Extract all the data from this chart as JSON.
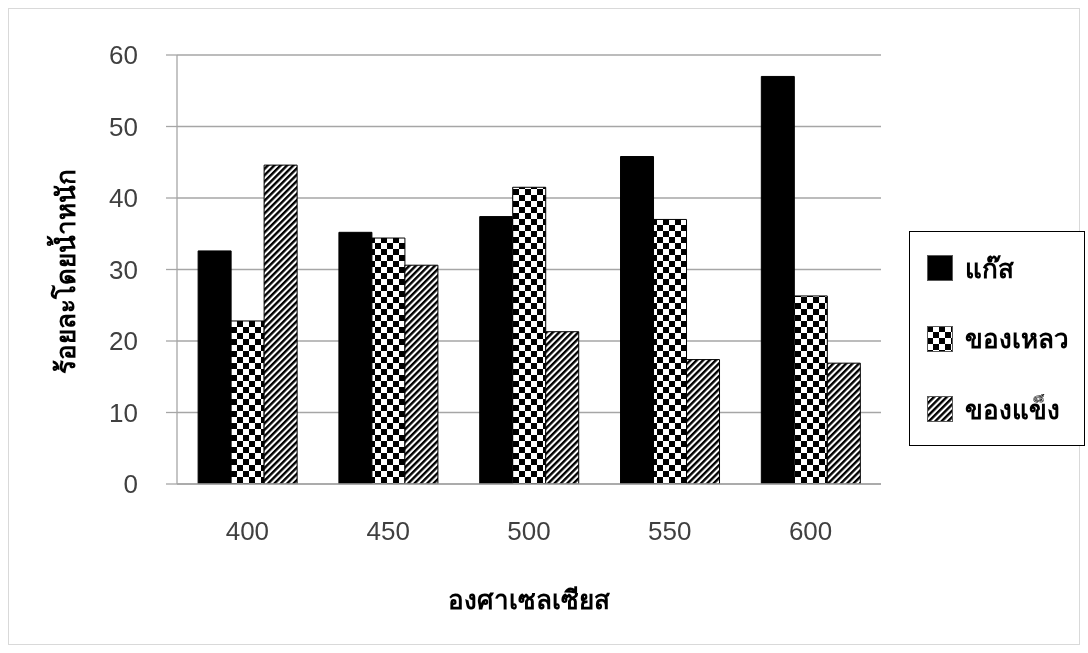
{
  "chart_data": {
    "type": "bar",
    "xlabel": "องศาเซลเซียส",
    "ylabel": "ร้อยละโดยน้ำหนัก",
    "categories": [
      "400",
      "450",
      "500",
      "550",
      "600"
    ],
    "series": [
      {
        "name": "แก๊ส",
        "color": "#000000",
        "values": [
          32.6,
          35.2,
          37.4,
          45.8,
          57.0
        ]
      },
      {
        "name": "ของเหลว",
        "color": "#000000",
        "values": [
          22.8,
          34.4,
          41.5,
          37.0,
          26.3
        ]
      },
      {
        "name": "ของแข็ง",
        "color": "#000000",
        "values": [
          44.6,
          30.6,
          21.3,
          17.4,
          16.9
        ]
      }
    ],
    "ylim": [
      0,
      60
    ],
    "yticks": [
      0,
      10,
      20,
      30,
      40,
      50,
      60
    ],
    "grid": "y",
    "legend": "right"
  }
}
